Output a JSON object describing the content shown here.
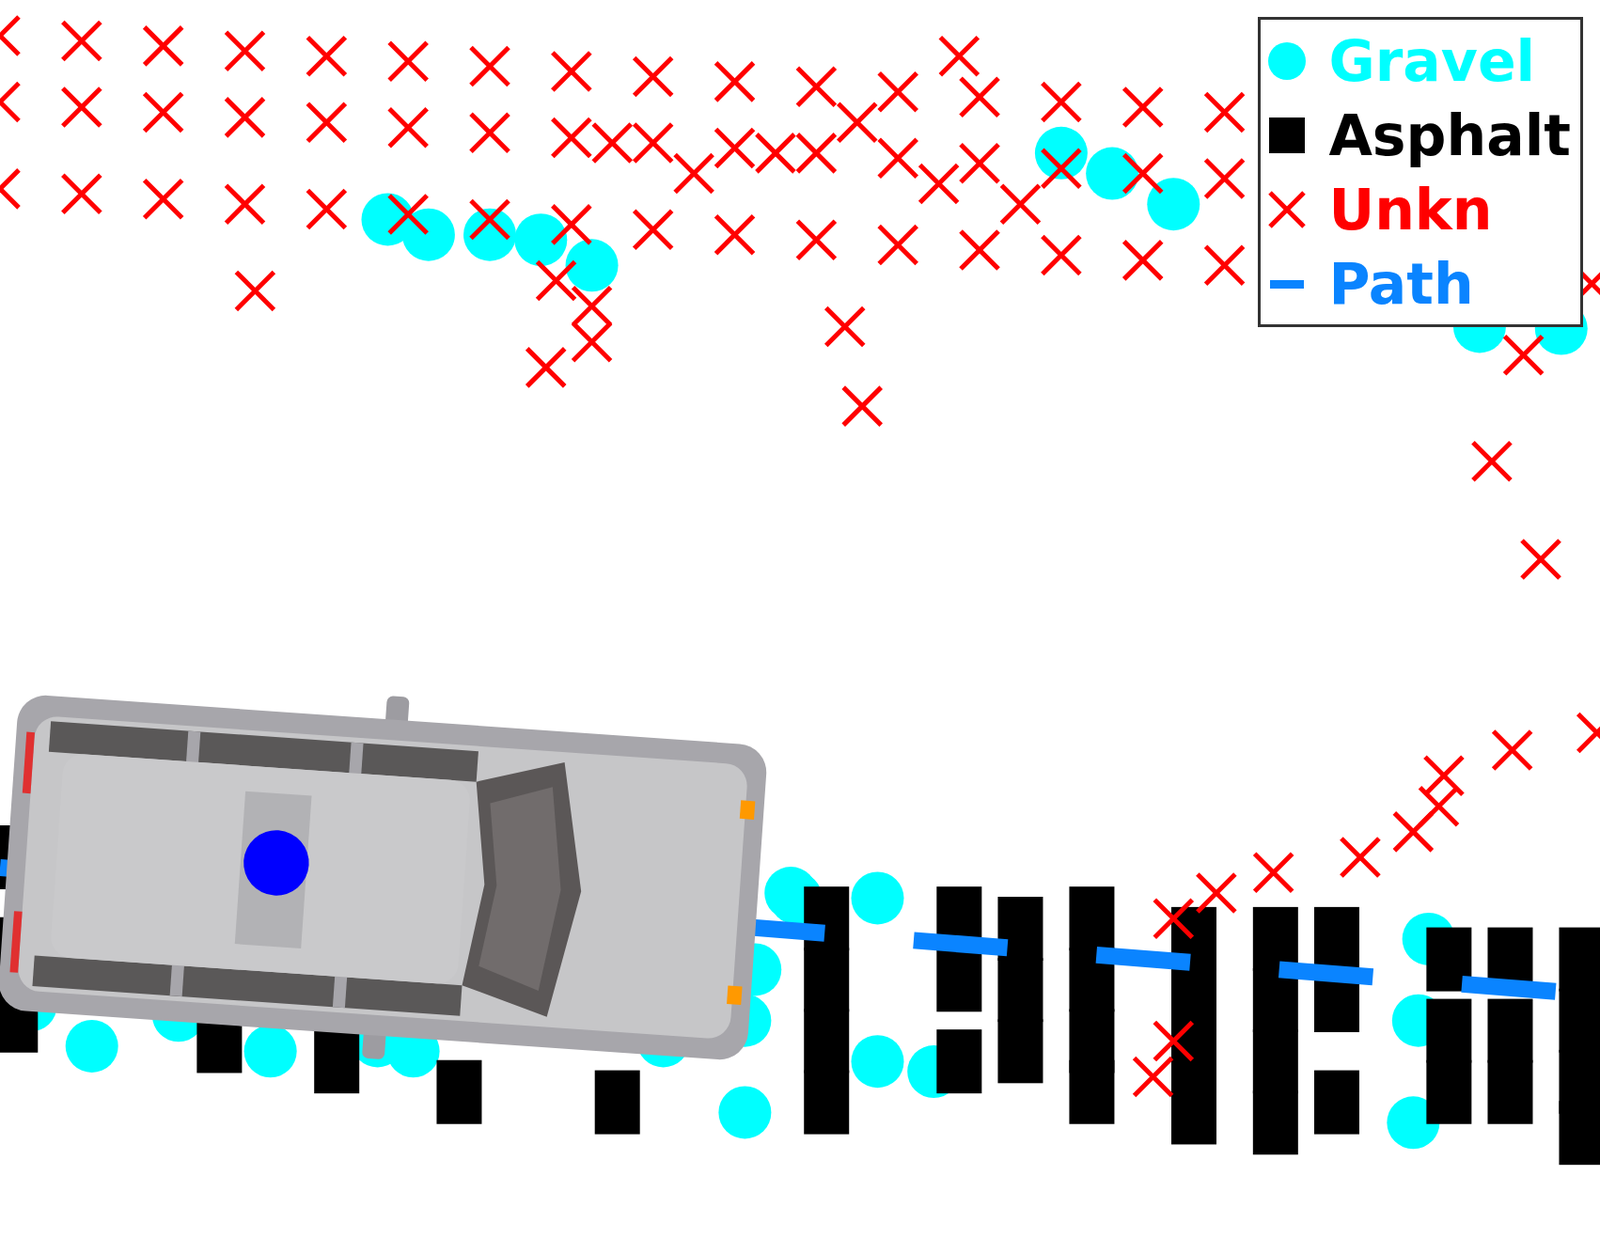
{
  "chart_data": {
    "type": "scatter",
    "tick_labels": false,
    "grid": false,
    "legend": "upper right",
    "xlim": [
      0,
      1568
    ],
    "ylim": [
      0,
      1213
    ],
    "series": [
      {
        "name": "Gravel",
        "color": "#00ffff",
        "marker": "circle",
        "x": [
          380,
          420,
          480,
          530,
          580,
          1040,
          1090,
          1150,
          1450,
          1530,
          30,
          90,
          175,
          265,
          370,
          405,
          650,
          730,
          730,
          740,
          775,
          780,
          860,
          860,
          915,
          1400,
          1390,
          1385
        ],
        "values": [
          998,
          983,
          983,
          978,
          953,
          1063,
          1043,
          1013,
          893,
          891,
          228,
          188,
          218,
          183,
          193,
          183,
          193,
          123,
          213,
          263,
          338,
          333,
          333,
          173,
          163,
          293,
          213,
          113
        ]
      },
      {
        "name": "Asphalt",
        "color": "#000000",
        "marker": "square",
        "x": [
          15,
          15,
          15,
          215,
          330,
          450,
          605,
          810,
          810,
          810,
          810,
          940,
          940,
          940,
          1000,
          1000,
          1000,
          1070,
          1070,
          1070,
          1070,
          1170,
          1170,
          1170,
          1170,
          1250,
          1250,
          1250,
          1250,
          1310,
          1310,
          1310,
          1420,
          1420,
          1420,
          1480,
          1480,
          1480,
          1550,
          1550,
          1550,
          1550
        ],
        "values": [
          373,
          283,
          213,
          193,
          173,
          143,
          133,
          313,
          253,
          193,
          133,
          313,
          253,
          173,
          303,
          243,
          183,
          313,
          253,
          193,
          143,
          293,
          233,
          173,
          123,
          293,
          233,
          173,
          113,
          293,
          233,
          133,
          273,
          203,
          143,
          273,
          203,
          143,
          273,
          213,
          153,
          103
        ]
      },
      {
        "name": "Unkn",
        "color": "#ff0000",
        "marker": "x",
        "x": [
          0,
          80,
          160,
          240,
          320,
          400,
          480,
          560,
          640,
          720,
          800,
          880,
          960,
          1040,
          1120,
          1200,
          0,
          80,
          160,
          240,
          320,
          400,
          480,
          560,
          640,
          720,
          800,
          880,
          960,
          1040,
          1120,
          1200,
          0,
          80,
          160,
          240,
          320,
          400,
          480,
          560,
          640,
          720,
          800,
          880,
          960,
          1040,
          1120,
          1200,
          1560,
          600,
          680,
          760,
          840,
          920,
          1000,
          940,
          250,
          535,
          580,
          580,
          545,
          828,
          845,
          1493,
          1462,
          1510,
          1482,
          1415,
          1410,
          1385,
          1333,
          1248,
          1192,
          1150,
          1565,
          1130,
          1150
        ],
        "values": [
          1178,
          1173,
          1168,
          1163,
          1158,
          1153,
          1148,
          1143,
          1138,
          1133,
          1128,
          1123,
          1118,
          1113,
          1108,
          1103,
          1113,
          1108,
          1103,
          1098,
          1093,
          1088,
          1083,
          1078,
          1073,
          1068,
          1063,
          1058,
          1053,
          1048,
          1043,
          1038,
          1028,
          1023,
          1018,
          1013,
          1008,
          1003,
          998,
          993,
          988,
          983,
          978,
          973,
          968,
          963,
          958,
          953,
          935,
          1073,
          1043,
          1063,
          1093,
          1033,
          1013,
          1158,
          928,
          853,
          878,
          913,
          938,
          893,
          815,
          865,
          761,
          665,
          478,
          453,
          423,
          398,
          373,
          358,
          338,
          313,
          495,
          158,
          193
        ]
      },
      {
        "name": "Path",
        "color": "#0a84ff",
        "type": "line",
        "line_style": "dashed",
        "x": [
          0,
          1568
        ],
        "values": [
          363,
          238
        ]
      }
    ]
  }
}
